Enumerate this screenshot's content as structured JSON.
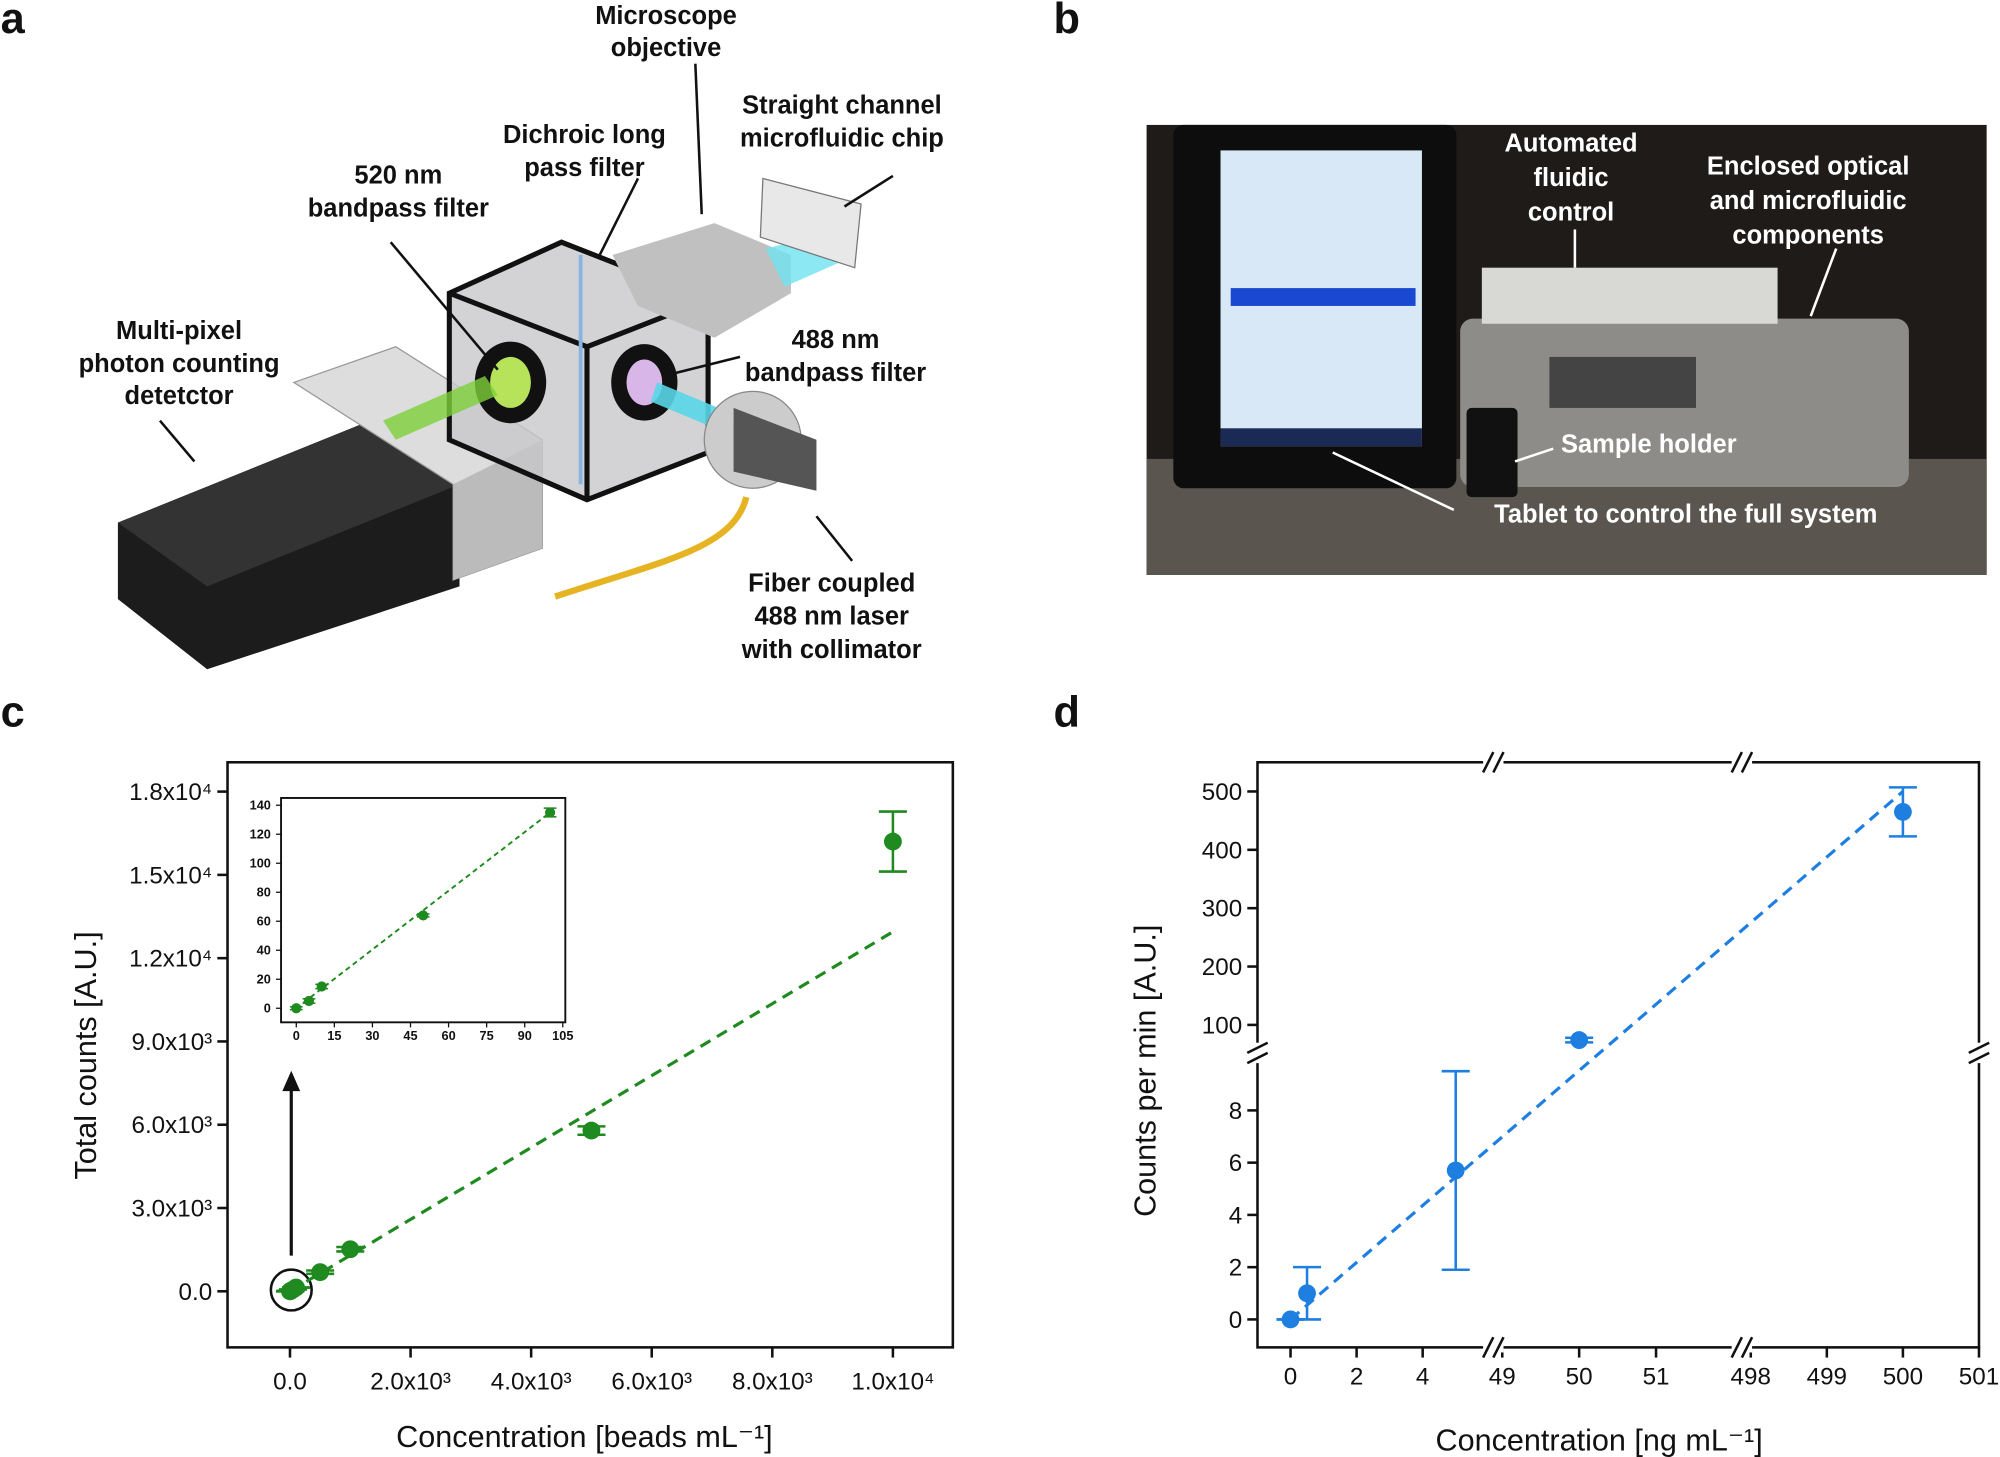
{
  "panel_labels": [
    "a",
    "b",
    "c",
    "d"
  ],
  "diagram_a": {
    "labels": [
      {
        "lines": [
          "Microscope",
          "objective"
        ]
      },
      {
        "lines": [
          "Straight channel",
          "microfluidic chip"
        ]
      },
      {
        "lines": [
          "Dichroic long",
          "pass filter"
        ]
      },
      {
        "lines": [
          "520 nm",
          "bandpass filter"
        ]
      },
      {
        "lines": [
          "Multi-pixel",
          "photon counting",
          "detetctor"
        ]
      },
      {
        "lines": [
          "488 nm",
          "bandpass filter"
        ]
      },
      {
        "lines": [
          "Fiber coupled",
          "488 nm laser",
          "with collimator"
        ]
      }
    ]
  },
  "photo_b": {
    "labels": [
      {
        "lines": [
          "Automated",
          "fluidic",
          "control"
        ]
      },
      {
        "lines": [
          "Enclosed optical",
          "and microfluidic",
          "components"
        ]
      },
      {
        "lines": [
          "Sample holder"
        ]
      },
      {
        "lines": [
          "Tablet to control the full system"
        ]
      }
    ]
  },
  "chart_data": [
    {
      "type": "scatter",
      "xlabel": "Concentration [beads mL⁻¹]",
      "ylabel": "Total counts [A.U.]",
      "color": "#1f8a1f",
      "x": [
        0,
        5,
        10,
        50,
        100,
        500,
        1000,
        5000,
        10000
      ],
      "values": [
        0,
        5,
        15,
        64,
        135,
        690,
        1515,
        5790,
        16200
      ],
      "errors": [
        0,
        0,
        0,
        0,
        0,
        60,
        80,
        150,
        1080
      ],
      "trend": {
        "x": [
          0,
          10000
        ],
        "y": [
          0,
          12950
        ]
      },
      "xlim": [
        -1036,
        10994
      ],
      "ylim": [
        -2020,
        19056
      ],
      "xticks": [
        {
          "value": 0,
          "label": "0.0"
        },
        {
          "value": 2000,
          "label": "2.0x10³"
        },
        {
          "value": 4000,
          "label": "4.0x10³"
        },
        {
          "value": 6000,
          "label": "6.0x10³"
        },
        {
          "value": 8000,
          "label": "8.0x10³"
        },
        {
          "value": 10000,
          "label": "1.0x10⁴"
        }
      ],
      "yticks": [
        {
          "value": 0,
          "label": "0.0"
        },
        {
          "value": 3000,
          "label": "3.0x10³"
        },
        {
          "value": 6000,
          "label": "6.0x10³"
        },
        {
          "value": 9000,
          "label": "9.0x10³"
        },
        {
          "value": 12000,
          "label": "1.2x10⁴"
        },
        {
          "value": 15000,
          "label": "1.5x10⁴"
        },
        {
          "value": 18000,
          "label": "1.8x10⁴"
        }
      ]
    },
    {
      "type": "scatter",
      "color": "#1f8a1f",
      "x": [
        0,
        5,
        10,
        50,
        100
      ],
      "values": [
        0,
        5,
        15,
        64,
        135
      ],
      "errors": [
        1,
        1.5,
        1.5,
        1,
        3
      ],
      "trend": {
        "x": [
          0,
          100
        ],
        "y": [
          0,
          135
        ]
      },
      "xlim": [
        -6,
        106
      ],
      "ylim": [
        -9.7,
        145
      ],
      "xticks": [
        0,
        15,
        30,
        45,
        60,
        75,
        90,
        105
      ],
      "yticks": [
        0,
        20,
        40,
        60,
        80,
        100,
        120,
        140
      ]
    },
    {
      "type": "scatter",
      "xlabel": "Concentration [ng mL⁻¹]",
      "ylabel": "Counts per min [A.U.]",
      "color": "#1e7fe0",
      "x": [
        0,
        0.5,
        5,
        50,
        500
      ],
      "values": [
        0,
        1,
        5.7,
        74,
        465
      ],
      "errors": [
        0,
        1,
        3.8,
        4,
        42
      ],
      "trend": {
        "x": [
          0,
          500
        ],
        "y": [
          0,
          500
        ]
      },
      "xsegments": [
        {
          "xlim": [
            -1,
            6.1
          ],
          "xticks": [
            0,
            2,
            4
          ]
        },
        {
          "xlim": [
            48.9,
            52.1
          ],
          "xticks": [
            49,
            50,
            51
          ]
        },
        {
          "xlim": [
            497.9,
            501
          ],
          "xticks": [
            498,
            499,
            500,
            501
          ]
        }
      ],
      "ysegments": [
        {
          "ylim": [
            -1.07,
            10.2
          ],
          "yticks": [
            0,
            2,
            4,
            6,
            8
          ]
        },
        {
          "ylim": [
            52,
            550
          ],
          "yticks": [
            100,
            200,
            300,
            400,
            500
          ]
        }
      ]
    }
  ]
}
